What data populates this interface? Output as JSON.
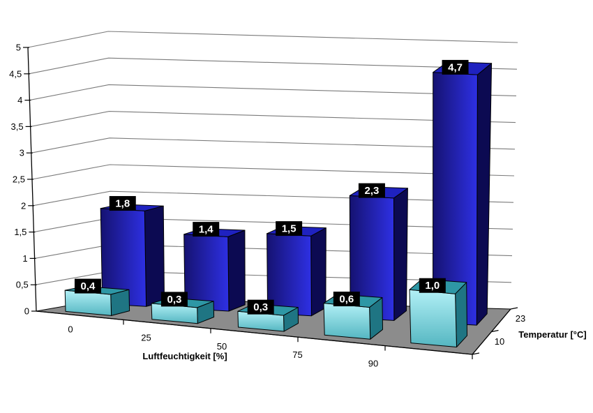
{
  "chart_data": {
    "type": "bar",
    "projection": "3d-column",
    "title": "",
    "xlabel": "Luftfeuchtigkeit [%]",
    "depth_label": "Temperatur [°C]",
    "ylabel": "",
    "ylim": [
      0,
      5
    ],
    "y_tick_step": 0.5,
    "y_tick_labels": [
      "0",
      "0,5",
      "1",
      "1,5",
      "2",
      "2,5",
      "3",
      "3,5",
      "4",
      "4,5",
      "5"
    ],
    "categories": [
      "0",
      "25",
      "50",
      "75",
      "90"
    ],
    "series": [
      {
        "name": "23",
        "row": "back",
        "values": [
          1.8,
          1.4,
          1.5,
          2.3,
          4.7
        ],
        "value_labels": [
          "1,8",
          "1,4",
          "1,5",
          "2,3",
          "4,7"
        ],
        "colors": {
          "front_from": "#151271",
          "front_to": "#2E30E4",
          "side": "#0C0A52",
          "top": "#1F22C0"
        }
      },
      {
        "name": "10",
        "row": "front",
        "values": [
          0.4,
          0.3,
          0.3,
          0.6,
          1.0
        ],
        "value_labels": [
          "0,4",
          "0,3",
          "0,3",
          "0,6",
          "1,0"
        ],
        "colors": {
          "front_from": "#B2F0F6",
          "front_to": "#54B6C1",
          "side": "#1F7583",
          "top": "#2E97A5"
        }
      }
    ],
    "legend": "none",
    "grid": true,
    "colors": {
      "background": "#FFFFFF",
      "floor": "#8C8C8C",
      "gridline": "#7A7A7A",
      "axis": "#000000",
      "bar_outline": "#000000",
      "value_label_bg": "#000000",
      "value_label_text": "#FFFFFF"
    }
  }
}
